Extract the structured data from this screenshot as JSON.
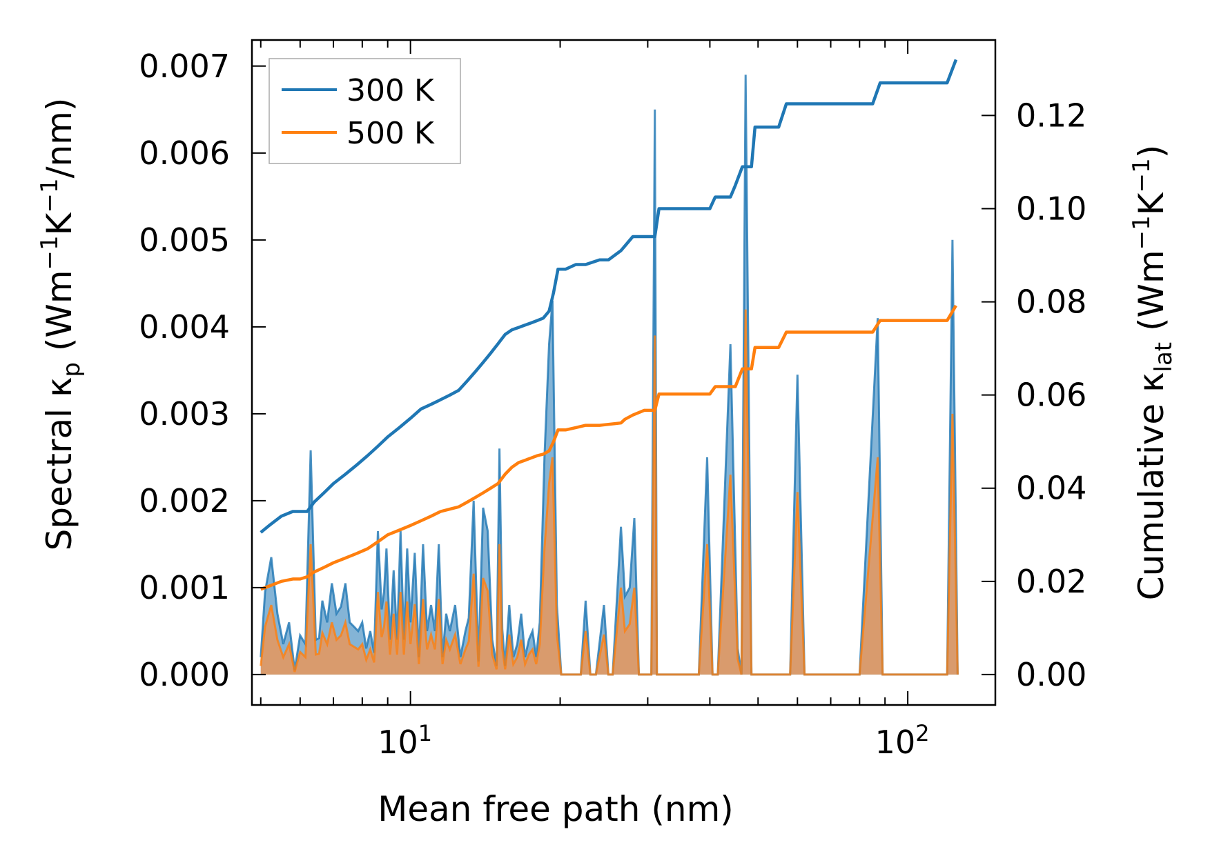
{
  "chart_data": {
    "type": "line",
    "title": "",
    "xlabel": "Mean free path (nm)",
    "xscale": "log",
    "xlim": [
      4.8,
      150
    ],
    "x_ticks": [
      {
        "value": 10,
        "base": "10",
        "exp": "1"
      },
      {
        "value": 100,
        "base": "10",
        "exp": "2"
      }
    ],
    "ylabel_left": {
      "pre": "Spectral κ",
      "sub": "p",
      "mid1": " (Wm",
      "sup1": "−1",
      "mid2": "K",
      "sup2": "−1",
      "post": "/nm)"
    },
    "ylim_left": [
      -0.00035,
      0.0073
    ],
    "yticks_left": [
      "0.000",
      "0.001",
      "0.002",
      "0.003",
      "0.004",
      "0.005",
      "0.006",
      "0.007"
    ],
    "ylabel_right": {
      "pre": "Cumulative κ",
      "sub": "lat",
      "mid1": " (Wm",
      "sup1": "−1",
      "mid2": "K",
      "sup2": "−1",
      "post": ")"
    },
    "ylim_right": [
      -0.00653,
      0.1362
    ],
    "yticks_right": [
      "0.00",
      "0.02",
      "0.04",
      "0.06",
      "0.08",
      "0.10",
      "0.12"
    ],
    "legend": {
      "placement": "top-left",
      "entries": [
        "300 K",
        "500 K"
      ]
    },
    "colors": {
      "s300": "#1f77b4",
      "s500": "#ff7f0e",
      "fill300": "#1f77b4",
      "fill500": "#e8975b"
    },
    "spectral_300K": {
      "x": [
        5.0,
        5.1,
        5.25,
        5.4,
        5.55,
        5.7,
        5.85,
        6.0,
        6.15,
        6.3,
        6.45,
        6.55,
        6.65,
        6.8,
        6.95,
        7.1,
        7.25,
        7.4,
        7.55,
        7.7,
        7.85,
        8.0,
        8.15,
        8.3,
        8.45,
        8.6,
        8.75,
        8.85,
        8.95,
        9.1,
        9.25,
        9.4,
        9.55,
        9.7,
        9.85,
        10.0,
        10.2,
        10.4,
        10.6,
        10.8,
        11.0,
        11.2,
        11.4,
        11.6,
        11.8,
        12.0,
        12.3,
        12.6,
        12.9,
        13.1,
        13.4,
        13.7,
        14.0,
        14.3,
        14.6,
        14.9,
        15.1,
        15.3,
        15.5,
        15.8,
        16.1,
        16.4,
        16.7,
        17.0,
        17.3,
        17.6,
        17.9,
        18.2,
        18.6,
        19.0,
        19.3,
        19.7,
        20.1,
        21.0,
        22.0,
        22.5,
        23.0,
        23.6,
        24.5,
        25.0,
        25.5,
        26.5,
        27.0,
        27.6,
        28.2,
        28.8,
        29.5,
        30.5,
        31.0,
        31.3,
        31.6,
        32.2,
        33.0,
        38.0,
        39.5,
        40.5,
        41.5,
        44.0,
        45.5,
        46.3,
        47.2,
        48.5,
        49.3,
        50.0,
        50.7,
        53.0,
        58.0,
        60.0,
        62.0,
        66.0,
        80.0,
        87.0,
        89.0,
        91.0,
        95.0,
        120.0,
        123.0,
        126.0
      ],
      "y": [
        0.0002,
        0.00095,
        0.00135,
        0.0007,
        0.00035,
        0.0006,
        5e-05,
        0.00045,
        0.00035,
        0.00258,
        0.0004,
        0.00042,
        0.00085,
        0.0006,
        0.00105,
        0.0007,
        0.00078,
        0.00105,
        0.0006,
        0.00055,
        0.0005,
        0.0006,
        0.0003,
        0.0005,
        0.00025,
        0.00165,
        0.00075,
        0.00095,
        0.00145,
        0.0004,
        0.0012,
        0.0004,
        0.00165,
        0.0004,
        0.00145,
        0.0006,
        0.0014,
        0.0002,
        0.0015,
        0.0005,
        0.0008,
        0.0005,
        0.0015,
        0.0002,
        0.0007,
        0.0005,
        0.0008,
        0.0002,
        0.0005,
        0.00065,
        0.002,
        0.00015,
        0.00192,
        0.00165,
        0.0004,
        0.0001,
        0.0026,
        0.00052,
        0.0001,
        0.0008,
        0.0002,
        0.00035,
        0.0007,
        0.0002,
        0.0004,
        0.0005,
        0.0002,
        0.0006,
        0.0025,
        0.0038,
        0.0043,
        0.0008,
        0.0,
        0.0,
        0.0,
        0.00085,
        0.0,
        0.0,
        0.0008,
        0.0,
        0.0,
        0.0017,
        0.0009,
        0.001,
        0.0018,
        0.0,
        0.0,
        0.0,
        0.0065,
        0.0,
        0.0,
        0.0,
        0.0,
        0.0,
        0.0025,
        0.0,
        0.0,
        0.0038,
        0.0003,
        0.0,
        0.0069,
        0.0,
        0.0,
        0.0,
        0.0,
        0.0,
        0.0,
        0.00345,
        0.0,
        0.0,
        0.0,
        0.0041,
        0.0,
        0.0,
        0.0,
        0.0,
        0.005,
        0.0
      ]
    },
    "spectral_500K": {
      "x": [
        5.0,
        5.1,
        5.25,
        5.4,
        5.55,
        5.7,
        5.85,
        6.0,
        6.15,
        6.3,
        6.45,
        6.55,
        6.65,
        6.8,
        6.95,
        7.1,
        7.25,
        7.4,
        7.55,
        7.7,
        7.85,
        8.0,
        8.15,
        8.3,
        8.45,
        8.6,
        8.75,
        8.85,
        8.95,
        9.1,
        9.25,
        9.4,
        9.55,
        9.7,
        9.85,
        10.0,
        10.2,
        10.4,
        10.6,
        10.8,
        11.0,
        11.2,
        11.4,
        11.6,
        11.8,
        12.0,
        12.3,
        12.6,
        12.9,
        13.1,
        13.4,
        13.7,
        14.0,
        14.3,
        14.6,
        14.9,
        15.1,
        15.3,
        15.5,
        15.8,
        16.1,
        16.4,
        16.7,
        17.0,
        17.3,
        17.6,
        17.9,
        18.2,
        18.6,
        19.0,
        19.3,
        19.7,
        20.1,
        21.0,
        22.0,
        22.5,
        23.0,
        23.6,
        24.5,
        25.0,
        25.5,
        26.5,
        27.0,
        27.6,
        28.2,
        28.8,
        29.5,
        30.5,
        31.0,
        31.3,
        31.6,
        32.2,
        33.0,
        38.0,
        39.5,
        40.5,
        41.5,
        44.0,
        45.5,
        46.3,
        47.2,
        48.5,
        49.3,
        50.0,
        50.7,
        53.0,
        58.0,
        60.0,
        62.0,
        66.0,
        80.0,
        87.0,
        89.0,
        91.0,
        95.0,
        120.0,
        123.0,
        126.0
      ],
      "y": [
        0.0001,
        0.00055,
        0.0008,
        0.0004,
        0.0002,
        0.00035,
        3e-05,
        0.00026,
        0.0002,
        0.0015,
        0.00023,
        0.00024,
        0.00048,
        0.00035,
        0.0006,
        0.0004,
        0.00045,
        0.0006,
        0.00035,
        0.00032,
        0.00029,
        0.00035,
        0.00017,
        0.00029,
        0.00014,
        0.00095,
        0.00043,
        0.00055,
        0.00084,
        0.00023,
        0.0007,
        0.00023,
        0.00095,
        0.00023,
        0.00084,
        0.00035,
        0.00081,
        0.00012,
        0.00087,
        0.00029,
        0.00046,
        0.00029,
        0.00087,
        0.00012,
        0.0004,
        0.00029,
        0.00046,
        0.00012,
        0.00029,
        0.00038,
        0.00116,
        9e-05,
        0.00111,
        0.00096,
        0.00023,
        6e-05,
        0.0015,
        0.0003,
        6e-05,
        0.00046,
        0.00012,
        0.0002,
        0.0004,
        0.00012,
        0.00023,
        0.00029,
        0.00012,
        0.00035,
        0.00145,
        0.0022,
        0.0025,
        0.00046,
        0.0,
        0.0,
        0.0,
        0.0005,
        0.0,
        0.0,
        0.00046,
        0.0,
        0.0,
        0.001,
        0.0005,
        0.00058,
        0.001,
        0.0,
        0.0,
        0.0,
        0.0039,
        0.0,
        0.0,
        0.0,
        0.0,
        0.0,
        0.0015,
        0.0,
        0.0,
        0.0023,
        0.00018,
        0.0,
        0.0042,
        0.0,
        0.0,
        0.0,
        0.0,
        0.0,
        0.0,
        0.0021,
        0.0,
        0.0,
        0.0,
        0.0025,
        0.0,
        0.0,
        0.0,
        0.0,
        0.003,
        0.0
      ]
    },
    "cumulative_300K": {
      "x": [
        5.0,
        5.2,
        5.5,
        5.8,
        6.0,
        6.2,
        6.4,
        6.7,
        7.0,
        7.4,
        7.8,
        8.2,
        8.6,
        9.0,
        9.5,
        10.0,
        10.5,
        11.0,
        11.5,
        12.0,
        12.5,
        13.0,
        13.5,
        14.0,
        14.5,
        15.0,
        15.5,
        16.0,
        16.5,
        17.0,
        17.5,
        18.0,
        18.5,
        19.0,
        19.4,
        19.8,
        20.5,
        21.5,
        22.5,
        24.0,
        25.0,
        26.5,
        27.0,
        28.0,
        29.5,
        31.0,
        31.6,
        33.0,
        40.0,
        41.0,
        44.0,
        45.0,
        46.5,
        47.5,
        48.5,
        49.3,
        50.0,
        51.0,
        55.0,
        57.0,
        59.0,
        62.0,
        75.0,
        85.0,
        88.0,
        92.0,
        110.0,
        120.0,
        125.0
      ],
      "y": [
        0.0305,
        0.032,
        0.034,
        0.035,
        0.035,
        0.035,
        0.037,
        0.039,
        0.041,
        0.043,
        0.045,
        0.047,
        0.049,
        0.051,
        0.053,
        0.055,
        0.057,
        0.058,
        0.059,
        0.06,
        0.061,
        0.063,
        0.065,
        0.067,
        0.069,
        0.071,
        0.073,
        0.074,
        0.0745,
        0.075,
        0.0755,
        0.076,
        0.0765,
        0.078,
        0.082,
        0.087,
        0.087,
        0.088,
        0.088,
        0.089,
        0.089,
        0.091,
        0.092,
        0.094,
        0.094,
        0.094,
        0.1,
        0.1,
        0.1,
        0.1025,
        0.1025,
        0.105,
        0.109,
        0.109,
        0.109,
        0.1175,
        0.1175,
        0.1175,
        0.1175,
        0.1225,
        0.1225,
        0.1225,
        0.1225,
        0.1225,
        0.127,
        0.127,
        0.127,
        0.127,
        0.132
      ]
    },
    "cumulative_500K": {
      "x": [
        5.0,
        5.2,
        5.5,
        5.8,
        6.0,
        6.2,
        6.4,
        6.7,
        7.0,
        7.4,
        7.8,
        8.2,
        8.6,
        9.0,
        9.5,
        10.0,
        10.5,
        11.0,
        11.5,
        12.0,
        12.5,
        13.0,
        13.5,
        14.0,
        14.5,
        15.0,
        15.5,
        16.0,
        16.5,
        17.0,
        17.5,
        18.0,
        18.5,
        19.0,
        19.4,
        19.8,
        20.5,
        21.5,
        22.5,
        24.0,
        25.0,
        26.5,
        27.0,
        28.0,
        29.5,
        31.0,
        31.6,
        33.0,
        40.0,
        41.0,
        44.0,
        45.0,
        46.5,
        47.5,
        48.5,
        49.3,
        50.0,
        51.0,
        55.0,
        57.0,
        59.0,
        62.0,
        75.0,
        85.0,
        88.0,
        92.0,
        110.0,
        120.0,
        125.0
      ],
      "y": [
        0.0183,
        0.019,
        0.02,
        0.0205,
        0.0205,
        0.021,
        0.022,
        0.023,
        0.024,
        0.025,
        0.026,
        0.027,
        0.0285,
        0.03,
        0.031,
        0.032,
        0.033,
        0.034,
        0.035,
        0.0355,
        0.036,
        0.037,
        0.038,
        0.039,
        0.04,
        0.041,
        0.043,
        0.0445,
        0.0455,
        0.046,
        0.0465,
        0.047,
        0.0473,
        0.048,
        0.05,
        0.0525,
        0.0525,
        0.053,
        0.0535,
        0.0535,
        0.0537,
        0.054,
        0.0548,
        0.0557,
        0.0567,
        0.0567,
        0.0602,
        0.0602,
        0.0602,
        0.0618,
        0.0618,
        0.0618,
        0.0656,
        0.0656,
        0.0656,
        0.0702,
        0.0702,
        0.0702,
        0.0702,
        0.0735,
        0.0735,
        0.0735,
        0.0735,
        0.0735,
        0.076,
        0.076,
        0.076,
        0.076,
        0.0792
      ]
    }
  }
}
